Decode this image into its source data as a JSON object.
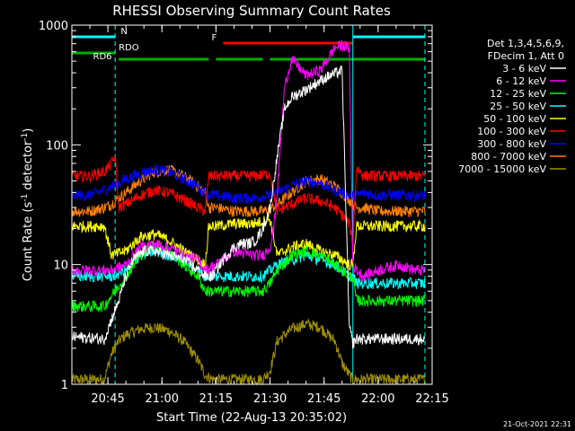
{
  "chart_data": {
    "type": "line",
    "title": "RHESSI Observing Summary Count Rates",
    "xlabel": "Start Time (22-Aug-13 20:35:02)",
    "ylabel_main": "Count Rate (s",
    "ylabel_sup1": "-1",
    "ylabel_mid": " detector",
    "ylabel_sup2": "-1",
    "ylabel_end": ")",
    "timestamp": "21-Oct-2021 22:31",
    "y_scale": "log",
    "ylim": [
      1,
      1000
    ],
    "xlim_min": [
      35,
      135
    ],
    "x_ticks": [
      {
        "t": 45,
        "label": "20:45"
      },
      {
        "t": 60,
        "label": "21:00"
      },
      {
        "t": 75,
        "label": "21:15"
      },
      {
        "t": 90,
        "label": "21:30"
      },
      {
        "t": 105,
        "label": "21:45"
      },
      {
        "t": 120,
        "label": "22:00"
      },
      {
        "t": 135,
        "label": "22:15"
      }
    ],
    "y_ticks": [
      {
        "v": 1,
        "label": "1"
      },
      {
        "v": 10,
        "label": "10"
      },
      {
        "v": 100,
        "label": "100"
      },
      {
        "v": 1000,
        "label": "1000"
      }
    ],
    "legend_header": [
      "Det 1,3,4,5,6,9,",
      "FDecim 1, Att 0"
    ],
    "series": [
      {
        "name": "3 - 6 keV",
        "color": "#ffffff",
        "t": [
          35,
          44,
          46,
          48,
          50,
          52,
          55,
          58,
          62,
          66,
          70,
          72,
          74,
          75,
          76,
          78,
          80,
          82,
          84,
          86,
          88,
          90,
          92,
          94,
          96,
          100,
          105,
          110,
          112,
          113,
          114,
          116,
          120,
          125,
          130,
          132
        ],
        "values": [
          2.5,
          2.4,
          3.5,
          5,
          8,
          11,
          13,
          13,
          12,
          11,
          9,
          8,
          8,
          9,
          10,
          12,
          14,
          15,
          15,
          16,
          20,
          30,
          80,
          200,
          250,
          290,
          360,
          420,
          3,
          2.2,
          2.4,
          2.4,
          2.4,
          2.4,
          2.4,
          2.4
        ]
      },
      {
        "name": "6 - 12 keV",
        "color": "#ff00ff",
        "t": [
          35,
          42,
          46,
          50,
          54,
          58,
          62,
          66,
          70,
          72,
          75,
          80,
          85,
          88,
          90,
          91,
          92,
          94,
          96,
          98,
          100,
          104,
          108,
          110,
          112,
          113,
          114,
          116,
          120,
          126,
          130,
          132
        ],
        "values": [
          9,
          9,
          9,
          10,
          14,
          15,
          14,
          12,
          11,
          9,
          10,
          13,
          12,
          12,
          14,
          20,
          40,
          300,
          520,
          450,
          380,
          420,
          650,
          680,
          650,
          10,
          9,
          8,
          9,
          10,
          9,
          9
        ]
      },
      {
        "name": "12 - 25 keV",
        "color": "#00ff00",
        "t": [
          35,
          44,
          46,
          50,
          54,
          58,
          62,
          66,
          70,
          72,
          75,
          80,
          85,
          88,
          90,
          92,
          96,
          100,
          104,
          108,
          110,
          112,
          113,
          114,
          116,
          120,
          126,
          130,
          132
        ],
        "values": [
          4.5,
          4.5,
          5.5,
          8,
          12,
          15,
          13,
          10,
          8,
          6,
          6,
          6,
          6,
          6,
          7,
          9,
          12,
          13,
          12,
          10,
          9,
          8,
          8,
          5,
          5,
          5,
          5,
          5,
          5
        ]
      },
      {
        "name": "25 - 50 keV",
        "color": "#00ffff",
        "t": [
          35,
          44,
          46,
          50,
          54,
          58,
          62,
          66,
          70,
          72,
          75,
          80,
          85,
          88,
          90,
          92,
          96,
          100,
          104,
          108,
          110,
          112,
          113,
          114,
          116,
          120,
          126,
          130,
          132
        ],
        "values": [
          8,
          8,
          8,
          9,
          12,
          13,
          12,
          11,
          9,
          8,
          8,
          8,
          8,
          8,
          9,
          10,
          11,
          12,
          11,
          10,
          9,
          8,
          8,
          7,
          7,
          7,
          7,
          7,
          7
        ]
      },
      {
        "name": "50 - 100 keV",
        "color": "#ffff00",
        "t": [
          35,
          44,
          46,
          50,
          54,
          58,
          62,
          66,
          70,
          72,
          73,
          75,
          80,
          85,
          88,
          90,
          92,
          96,
          100,
          104,
          108,
          110,
          112,
          113,
          114,
          116,
          120,
          126,
          130,
          132
        ],
        "values": [
          21,
          21,
          12,
          13,
          17,
          18,
          16,
          13,
          11,
          10,
          21,
          21,
          22,
          22,
          23,
          24,
          12,
          14,
          15,
          13,
          12,
          11,
          10,
          10,
          21,
          21,
          21,
          21,
          21,
          21
        ]
      },
      {
        "name": "100 - 300 keV",
        "color": "#ff0000",
        "t": [
          35,
          40,
          44,
          46,
          47,
          48,
          50,
          54,
          58,
          62,
          66,
          70,
          72,
          73,
          75,
          80,
          85,
          88,
          90,
          92,
          96,
          100,
          104,
          108,
          110,
          112,
          113,
          114,
          116,
          120,
          126,
          130,
          132
        ],
        "values": [
          55,
          55,
          60,
          70,
          80,
          30,
          32,
          38,
          42,
          40,
          35,
          30,
          28,
          55,
          55,
          55,
          55,
          56,
          58,
          28,
          32,
          36,
          34,
          30,
          26,
          22,
          15,
          65,
          55,
          55,
          55,
          55,
          55
        ]
      },
      {
        "name": "300 - 800 keV",
        "color": "#0000ff",
        "t": [
          35,
          40,
          44,
          46,
          48,
          50,
          54,
          58,
          62,
          66,
          70,
          72,
          73,
          75,
          80,
          85,
          88,
          90,
          92,
          96,
          100,
          104,
          108,
          110,
          112,
          113,
          114,
          116,
          120,
          126,
          130,
          132
        ],
        "values": [
          38,
          38,
          42,
          45,
          48,
          52,
          58,
          62,
          60,
          52,
          45,
          40,
          38,
          38,
          36,
          36,
          37,
          38,
          40,
          46,
          50,
          48,
          42,
          40,
          38,
          38,
          38,
          40,
          38,
          38,
          38,
          38
        ]
      },
      {
        "name": "800 - 7000 keV",
        "color": "#ff8000",
        "t": [
          35,
          40,
          44,
          46,
          48,
          50,
          54,
          58,
          62,
          66,
          70,
          72,
          73,
          75,
          80,
          85,
          88,
          90,
          92,
          96,
          100,
          104,
          108,
          110,
          112,
          113,
          114,
          116,
          120,
          126,
          130,
          132
        ],
        "values": [
          28,
          28,
          30,
          32,
          36,
          40,
          50,
          60,
          62,
          55,
          45,
          40,
          30,
          30,
          28,
          28,
          28,
          29,
          32,
          40,
          50,
          52,
          45,
          40,
          35,
          32,
          30,
          30,
          28,
          28,
          28,
          28
        ]
      },
      {
        "name": "7000 - 15000 keV",
        "color": "#a09000",
        "t": [
          35,
          44,
          46,
          48,
          50,
          54,
          58,
          62,
          66,
          70,
          72,
          74,
          80,
          86,
          88,
          90,
          92,
          96,
          100,
          104,
          108,
          110,
          112,
          113,
          114,
          116,
          120,
          126,
          130,
          132
        ],
        "values": [
          1.1,
          1.1,
          1.8,
          2.3,
          2.6,
          2.9,
          3.0,
          2.8,
          2.3,
          1.6,
          1.2,
          1.1,
          1.1,
          1.1,
          1.1,
          1.3,
          2.3,
          2.9,
          3.2,
          3.0,
          2.3,
          1.5,
          1.2,
          1.1,
          1.1,
          1.1,
          1.1,
          1.1,
          1.1,
          1.1
        ]
      }
    ],
    "flags": [
      {
        "label": "N",
        "color": "#00ffff",
        "segments": [
          [
            35,
            47
          ],
          [
            113,
            133
          ]
        ],
        "level": 0
      },
      {
        "label": "F",
        "color": "#ff0000",
        "segments": [
          [
            77,
            113
          ]
        ],
        "level": 1
      },
      {
        "label": "RDO",
        "color": "#00b000",
        "segments": [
          [
            35,
            47
          ]
        ],
        "level": 2
      },
      {
        "label": "RD6",
        "color": "#00b000",
        "segments": [
          [
            48,
            73
          ],
          [
            75,
            88
          ],
          [
            90,
            133
          ]
        ],
        "level": 3
      }
    ],
    "vlines": [
      {
        "t": 35,
        "color": "#00ffff",
        "style": "solid"
      },
      {
        "t": 47,
        "color": "#00ffff",
        "style": "dash"
      },
      {
        "t": 113,
        "color": "#00ffff",
        "style": "solid"
      },
      {
        "t": 133,
        "color": "#00ffff",
        "style": "dash"
      }
    ]
  }
}
